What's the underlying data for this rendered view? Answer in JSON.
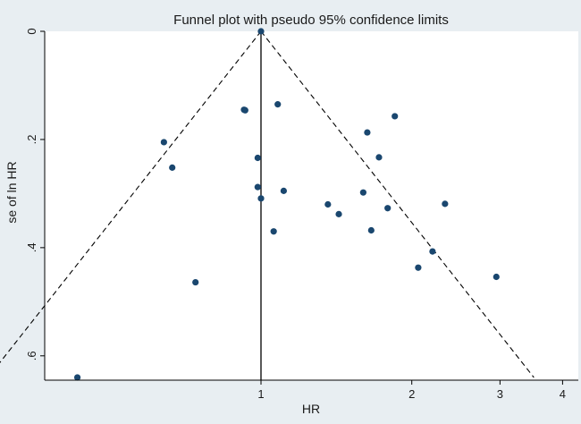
{
  "chart_data": {
    "type": "scatter",
    "title": "Funnel plot with pseudo 95% confidence limits",
    "xlabel": "HR",
    "ylabel": "se of ln HR",
    "x_scale": "log",
    "y_reversed": true,
    "xlim": [
      0.37,
      4.3
    ],
    "ylim": [
      0,
      0.645
    ],
    "x_ticks": [
      {
        "value": 1,
        "label": "1"
      },
      {
        "value": 2,
        "label": "2"
      },
      {
        "value": 3,
        "label": "3"
      },
      {
        "value": 4,
        "label": "4"
      }
    ],
    "y_ticks": [
      {
        "value": 0,
        "label": "0"
      },
      {
        "value": 0.2,
        "label": ".2"
      },
      {
        "value": 0.4,
        "label": ".4"
      },
      {
        "value": 0.6,
        "label": ".6"
      }
    ],
    "pooled_estimate": 1.0,
    "funnel_se_max": 0.64,
    "points": [
      {
        "hr": 1.0,
        "se": 0.0
      },
      {
        "hr": 0.925,
        "se": 0.145
      },
      {
        "hr": 0.93,
        "se": 0.146
      },
      {
        "hr": 1.08,
        "se": 0.135
      },
      {
        "hr": 1.85,
        "se": 0.157
      },
      {
        "hr": 0.64,
        "se": 0.205
      },
      {
        "hr": 1.63,
        "se": 0.187
      },
      {
        "hr": 0.665,
        "se": 0.252
      },
      {
        "hr": 0.985,
        "se": 0.234
      },
      {
        "hr": 1.72,
        "se": 0.233
      },
      {
        "hr": 0.985,
        "se": 0.288
      },
      {
        "hr": 1.11,
        "se": 0.295
      },
      {
        "hr": 1.0,
        "se": 0.309
      },
      {
        "hr": 1.6,
        "se": 0.298
      },
      {
        "hr": 1.36,
        "se": 0.32
      },
      {
        "hr": 2.33,
        "se": 0.319
      },
      {
        "hr": 1.43,
        "se": 0.338
      },
      {
        "hr": 1.79,
        "se": 0.327
      },
      {
        "hr": 1.06,
        "se": 0.37
      },
      {
        "hr": 1.66,
        "se": 0.368
      },
      {
        "hr": 2.2,
        "se": 0.407
      },
      {
        "hr": 2.06,
        "se": 0.437
      },
      {
        "hr": 0.74,
        "se": 0.464
      },
      {
        "hr": 2.95,
        "se": 0.454
      },
      {
        "hr": 0.43,
        "se": 0.64
      }
    ],
    "colors": {
      "background": "#e8eef2",
      "plot_area": "#ffffff",
      "marker": "#1a476f",
      "line": "#000000"
    }
  }
}
